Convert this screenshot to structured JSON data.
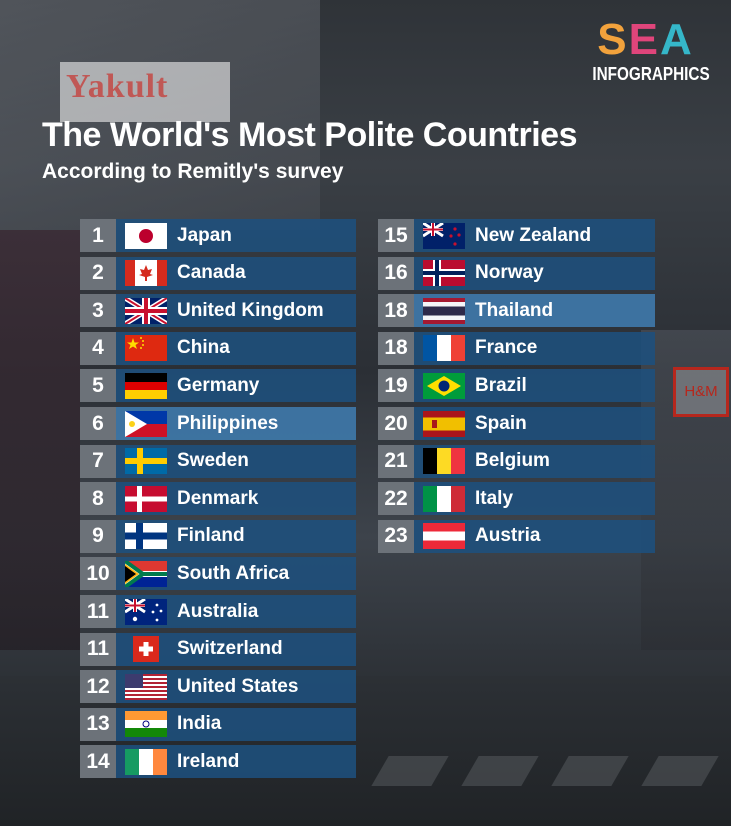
{
  "logo": {
    "brand_letters": [
      "S",
      "E",
      "A"
    ],
    "sub": "INFOGRAPHICS"
  },
  "background_sign": {
    "brand": "Yakult",
    "store": "H&M"
  },
  "title": "The World's Most Polite Countries",
  "subtitle": "According to Remitly's survey",
  "colors": {
    "bar": "#1e507d",
    "bar_highlight": "#3e76a5",
    "rank_box": "#6c7279"
  },
  "rankings_left": [
    {
      "rank": "1",
      "country": "Japan",
      "flag": "japan-flag-icon"
    },
    {
      "rank": "2",
      "country": "Canada",
      "flag": "canada-flag-icon"
    },
    {
      "rank": "3",
      "country": "United Kingdom",
      "flag": "uk-flag-icon"
    },
    {
      "rank": "4",
      "country": "China",
      "flag": "china-flag-icon"
    },
    {
      "rank": "5",
      "country": "Germany",
      "flag": "germany-flag-icon"
    },
    {
      "rank": "6",
      "country": "Philippines",
      "flag": "philippines-flag-icon",
      "highlight": true
    },
    {
      "rank": "7",
      "country": "Sweden",
      "flag": "sweden-flag-icon"
    },
    {
      "rank": "8",
      "country": "Denmark",
      "flag": "denmark-flag-icon"
    },
    {
      "rank": "9",
      "country": "Finland",
      "flag": "finland-flag-icon"
    },
    {
      "rank": "10",
      "country": "South Africa",
      "flag": "south-africa-flag-icon"
    },
    {
      "rank": "11",
      "country": "Australia",
      "flag": "australia-flag-icon"
    },
    {
      "rank": "11",
      "country": "Switzerland",
      "flag": "switzerland-flag-icon"
    },
    {
      "rank": "12",
      "country": "United States",
      "flag": "usa-flag-icon"
    },
    {
      "rank": "13",
      "country": "India",
      "flag": "india-flag-icon"
    },
    {
      "rank": "14",
      "country": "Ireland",
      "flag": "ireland-flag-icon"
    }
  ],
  "rankings_right": [
    {
      "rank": "15",
      "country": "New Zealand",
      "flag": "new-zealand-flag-icon"
    },
    {
      "rank": "16",
      "country": "Norway",
      "flag": "norway-flag-icon"
    },
    {
      "rank": "18",
      "country": "Thailand",
      "flag": "thailand-flag-icon",
      "highlight": true
    },
    {
      "rank": "18",
      "country": "France",
      "flag": "france-flag-icon"
    },
    {
      "rank": "19",
      "country": "Brazil",
      "flag": "brazil-flag-icon"
    },
    {
      "rank": "20",
      "country": "Spain",
      "flag": "spain-flag-icon"
    },
    {
      "rank": "21",
      "country": "Belgium",
      "flag": "belgium-flag-icon"
    },
    {
      "rank": "22",
      "country": "Italy",
      "flag": "italy-flag-icon"
    },
    {
      "rank": "23",
      "country": "Austria",
      "flag": "austria-flag-icon"
    }
  ]
}
